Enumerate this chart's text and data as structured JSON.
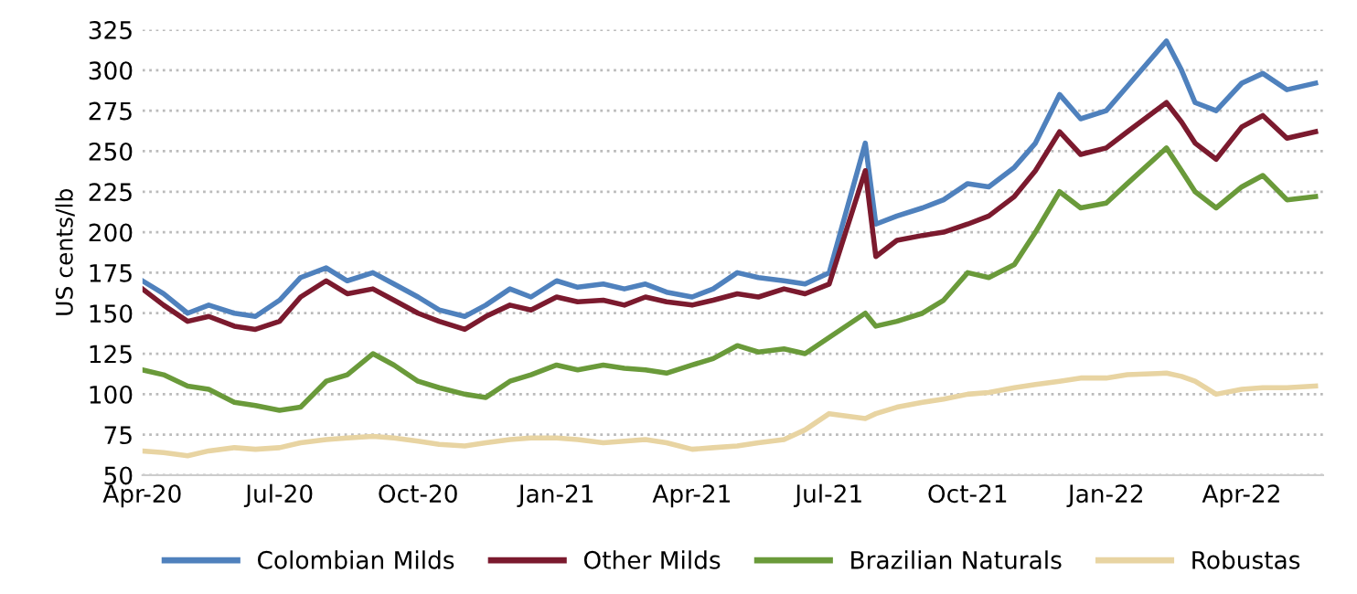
{
  "chart_data": {
    "type": "line",
    "ylabel": "US cents/lb",
    "ylim": [
      50,
      325
    ],
    "yticks": [
      50,
      75,
      100,
      125,
      150,
      175,
      200,
      225,
      250,
      275,
      300,
      325
    ],
    "xlim": [
      "2020-04-01",
      "2022-05-25"
    ],
    "xticks": [
      {
        "value": "2020-04-01",
        "label": "Apr-20"
      },
      {
        "value": "2020-07-01",
        "label": "Jul-20"
      },
      {
        "value": "2020-10-01",
        "label": "Oct-20"
      },
      {
        "value": "2021-01-01",
        "label": "Jan-21"
      },
      {
        "value": "2021-04-01",
        "label": "Apr-21"
      },
      {
        "value": "2021-07-01",
        "label": "Jul-21"
      },
      {
        "value": "2021-10-01",
        "label": "Oct-21"
      },
      {
        "value": "2022-01-01",
        "label": "Jan-22"
      },
      {
        "value": "2022-04-01",
        "label": "Apr-22"
      }
    ],
    "x": [
      "2020-04-01",
      "2020-04-15",
      "2020-05-01",
      "2020-05-15",
      "2020-06-01",
      "2020-06-15",
      "2020-07-01",
      "2020-07-15",
      "2020-08-01",
      "2020-08-15",
      "2020-09-01",
      "2020-09-15",
      "2020-10-01",
      "2020-10-15",
      "2020-11-01",
      "2020-11-15",
      "2020-12-01",
      "2020-12-15",
      "2021-01-01",
      "2021-01-15",
      "2021-02-01",
      "2021-02-15",
      "2021-03-01",
      "2021-03-15",
      "2021-04-01",
      "2021-04-15",
      "2021-05-01",
      "2021-05-15",
      "2021-06-01",
      "2021-06-15",
      "2021-07-01",
      "2021-07-25",
      "2021-08-01",
      "2021-08-15",
      "2021-09-01",
      "2021-09-15",
      "2021-10-01",
      "2021-10-15",
      "2021-11-01",
      "2021-11-15",
      "2021-12-01",
      "2021-12-15",
      "2022-01-01",
      "2022-01-15",
      "2022-02-10",
      "2022-02-20",
      "2022-03-01",
      "2022-03-15",
      "2022-04-01",
      "2022-04-15",
      "2022-05-01",
      "2022-05-20"
    ],
    "grid": "y",
    "legend": "bottom",
    "marker": "none",
    "line_style": "solid",
    "series": [
      {
        "name": "Colombian Milds",
        "color": "#4f81bd",
        "values": [
          170,
          162,
          150,
          155,
          150,
          148,
          158,
          172,
          178,
          170,
          175,
          168,
          160,
          152,
          148,
          155,
          165,
          160,
          170,
          166,
          168,
          165,
          168,
          163,
          160,
          165,
          175,
          172,
          170,
          168,
          175,
          255,
          205,
          210,
          215,
          220,
          230,
          228,
          240,
          255,
          285,
          270,
          275,
          290,
          318,
          300,
          280,
          275,
          292,
          298,
          288,
          292
        ]
      },
      {
        "name": "Other Milds",
        "color": "#7b1a2e",
        "values": [
          165,
          155,
          145,
          148,
          142,
          140,
          145,
          160,
          170,
          162,
          165,
          158,
          150,
          145,
          140,
          148,
          155,
          152,
          160,
          157,
          158,
          155,
          160,
          157,
          155,
          158,
          162,
          160,
          165,
          162,
          168,
          238,
          185,
          195,
          198,
          200,
          205,
          210,
          222,
          238,
          262,
          248,
          252,
          262,
          280,
          268,
          255,
          245,
          265,
          272,
          258,
          262
        ]
      },
      {
        "name": "Brazilian Naturals",
        "color": "#6a9a3a",
        "values": [
          115,
          112,
          105,
          103,
          95,
          93,
          90,
          92,
          108,
          112,
          125,
          118,
          108,
          104,
          100,
          98,
          108,
          112,
          118,
          115,
          118,
          116,
          115,
          113,
          118,
          122,
          130,
          126,
          128,
          125,
          135,
          150,
          142,
          145,
          150,
          158,
          175,
          172,
          180,
          200,
          225,
          215,
          218,
          230,
          252,
          238,
          225,
          215,
          228,
          235,
          220,
          222
        ]
      },
      {
        "name": "Robustas",
        "color": "#e8d4a2",
        "values": [
          65,
          64,
          62,
          65,
          67,
          66,
          67,
          70,
          72,
          73,
          74,
          73,
          71,
          69,
          68,
          70,
          72,
          73,
          73,
          72,
          70,
          71,
          72,
          70,
          66,
          67,
          68,
          70,
          72,
          78,
          88,
          85,
          88,
          92,
          95,
          97,
          100,
          101,
          104,
          106,
          108,
          110,
          110,
          112,
          113,
          111,
          108,
          100,
          103,
          104,
          104,
          105
        ]
      }
    ]
  }
}
